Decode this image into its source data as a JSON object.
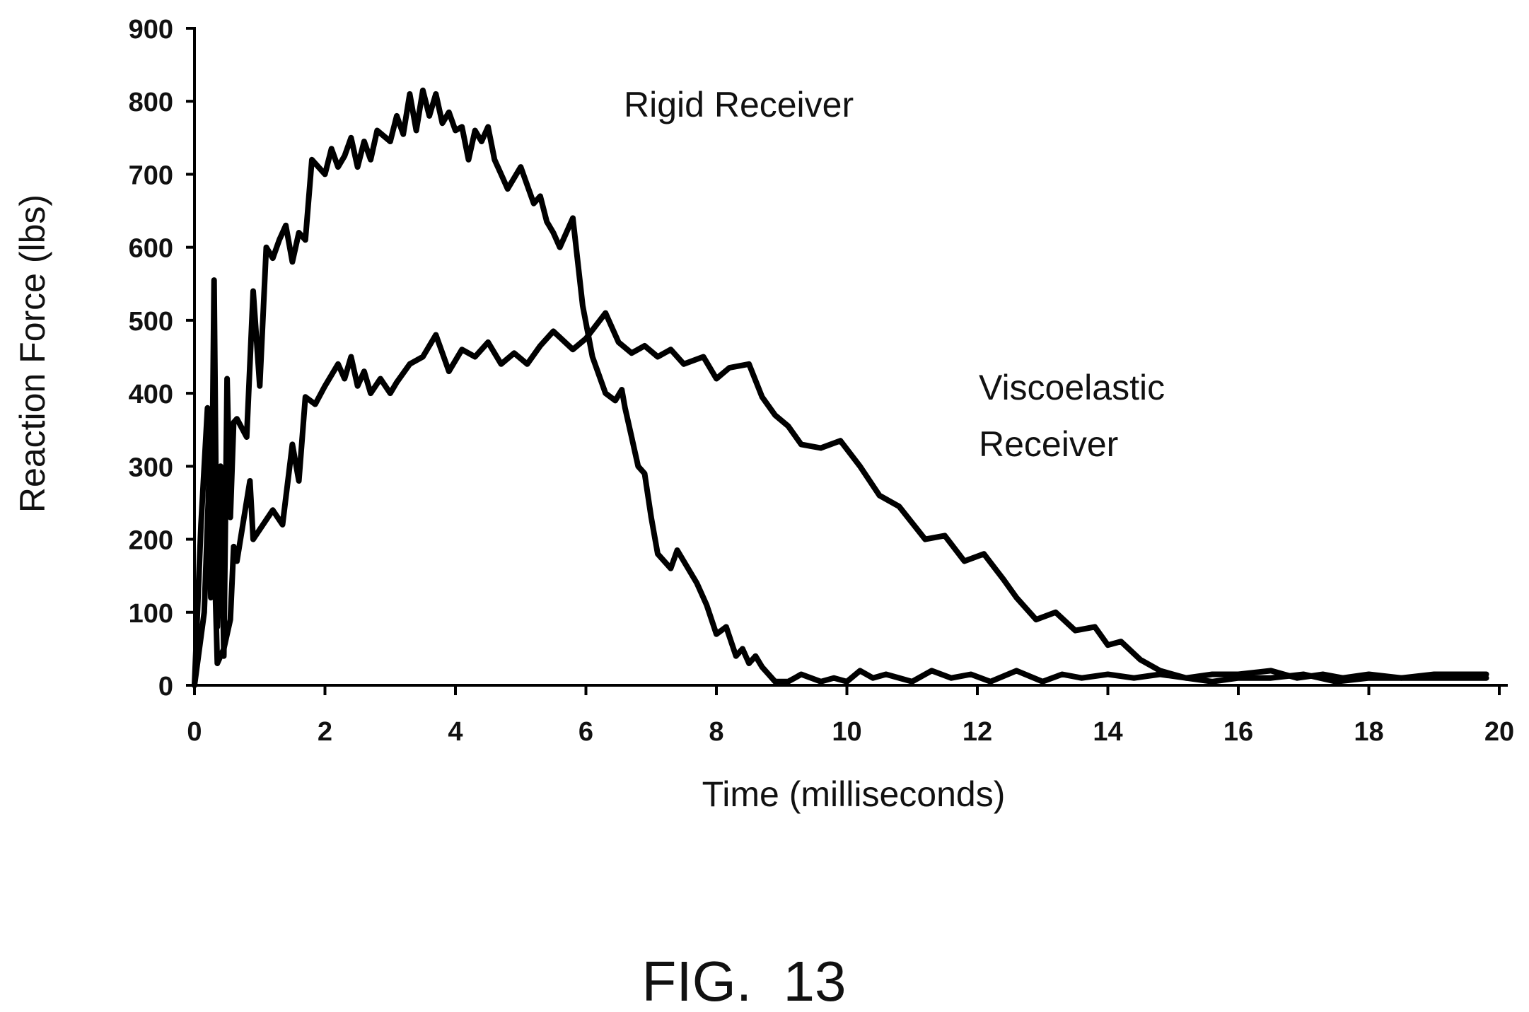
{
  "chart_data": {
    "type": "line",
    "title": "",
    "xlabel": "Time (milliseconds)",
    "ylabel": "Reaction Force (lbs)",
    "xlim": [
      0,
      20
    ],
    "ylim": [
      0,
      900
    ],
    "xticks": [
      0,
      2,
      4,
      6,
      8,
      10,
      12,
      14,
      16,
      18,
      20
    ],
    "yticks": [
      0,
      100,
      200,
      300,
      400,
      500,
      600,
      700,
      800,
      900
    ],
    "grid": false,
    "legend": "none",
    "annotations": [
      {
        "text": "Rigid Receiver",
        "series": 0
      },
      {
        "text": "Viscoelastic",
        "series": 1
      },
      {
        "text": "Receiver",
        "series": 1
      }
    ],
    "figure_label": "FIG.  13",
    "series": [
      {
        "x": [
          0,
          0.1,
          0.2,
          0.25,
          0.3,
          0.35,
          0.4,
          0.45,
          0.5,
          0.55,
          0.6,
          0.65,
          0.8,
          0.9,
          1.0,
          1.1,
          1.2,
          1.3,
          1.4,
          1.5,
          1.6,
          1.7,
          1.8,
          2.0,
          2.1,
          2.2,
          2.3,
          2.4,
          2.5,
          2.6,
          2.7,
          2.8,
          3.0,
          3.1,
          3.2,
          3.3,
          3.4,
          3.5,
          3.6,
          3.7,
          3.8,
          3.9,
          4.0,
          4.1,
          4.2,
          4.3,
          4.4,
          4.5,
          4.6,
          4.7,
          4.8,
          5.0,
          5.2,
          5.3,
          5.4,
          5.5,
          5.6,
          5.8,
          5.95,
          6.1,
          6.3,
          6.45,
          6.55,
          6.6,
          6.7,
          6.8,
          6.9,
          7.0,
          7.1,
          7.3,
          7.4,
          7.7,
          7.85,
          8.0,
          8.15,
          8.3,
          8.4,
          8.5,
          8.6,
          8.7,
          8.8,
          8.9,
          9.0,
          9.1,
          9.2,
          9.3,
          9.6,
          9.8,
          10.0,
          10.2,
          10.4,
          10.6,
          11.0,
          11.3,
          11.6,
          11.9,
          12.2,
          12.6,
          13.0,
          13.3,
          13.6,
          14.0,
          14.4,
          14.8,
          15.2,
          15.6,
          16.0,
          16.5,
          16.9,
          17.3,
          17.6,
          18.0,
          18.5,
          19.0,
          19.3,
          19.8
        ],
        "values": [
          0,
          220,
          380,
          120,
          555,
          80,
          300,
          40,
          420,
          230,
          360,
          365,
          340,
          540,
          410,
          600,
          585,
          610,
          630,
          580,
          620,
          610,
          720,
          700,
          735,
          710,
          725,
          750,
          710,
          745,
          720,
          760,
          745,
          780,
          755,
          810,
          760,
          815,
          780,
          810,
          770,
          785,
          760,
          765,
          720,
          760,
          745,
          765,
          720,
          700,
          680,
          710,
          660,
          670,
          635,
          620,
          600,
          640,
          520,
          450,
          400,
          390,
          405,
          380,
          340,
          300,
          290,
          230,
          180,
          160,
          185,
          140,
          110,
          70,
          80,
          40,
          50,
          30,
          40,
          25,
          15,
          5,
          5,
          5,
          10,
          15,
          5,
          10,
          5,
          20,
          10,
          15,
          5,
          20,
          10,
          15,
          5,
          20,
          5,
          15,
          10,
          15,
          10,
          15,
          10,
          15,
          15,
          20,
          10,
          15,
          10,
          15,
          10,
          15,
          15,
          15
        ]
      },
      {
        "x": [
          0,
          0.15,
          0.25,
          0.35,
          0.45,
          0.55,
          0.6,
          0.65,
          0.85,
          0.9,
          1.2,
          1.35,
          1.5,
          1.6,
          1.7,
          1.85,
          2.0,
          2.2,
          2.3,
          2.4,
          2.5,
          2.6,
          2.7,
          2.85,
          3.0,
          3.1,
          3.3,
          3.5,
          3.7,
          3.9,
          4.1,
          4.3,
          4.5,
          4.7,
          4.9,
          5.1,
          5.3,
          5.5,
          5.8,
          6.0,
          6.3,
          6.5,
          6.7,
          6.9,
          7.1,
          7.3,
          7.5,
          7.8,
          8.0,
          8.2,
          8.5,
          8.7,
          8.9,
          9.1,
          9.3,
          9.6,
          9.9,
          10.2,
          10.5,
          10.8,
          11.2,
          11.5,
          11.8,
          12.1,
          12.4,
          12.6,
          12.9,
          13.2,
          13.5,
          13.8,
          14.0,
          14.2,
          14.5,
          14.8,
          15.2,
          15.6,
          16.0,
          16.5,
          17.0,
          17.5,
          18.0,
          18.5,
          19.0,
          19.5,
          19.8
        ],
        "values": [
          0,
          100,
          350,
          30,
          50,
          90,
          190,
          170,
          280,
          200,
          240,
          220,
          330,
          280,
          395,
          385,
          410,
          440,
          420,
          450,
          410,
          430,
          400,
          420,
          400,
          415,
          440,
          450,
          480,
          430,
          460,
          450,
          470,
          440,
          455,
          440,
          465,
          485,
          460,
          475,
          510,
          470,
          455,
          465,
          450,
          460,
          440,
          450,
          420,
          435,
          440,
          395,
          370,
          355,
          330,
          325,
          335,
          300,
          260,
          245,
          200,
          205,
          170,
          180,
          145,
          120,
          90,
          100,
          75,
          80,
          55,
          60,
          35,
          20,
          10,
          5,
          10,
          10,
          15,
          5,
          10,
          10,
          10,
          10,
          10
        ]
      }
    ]
  }
}
